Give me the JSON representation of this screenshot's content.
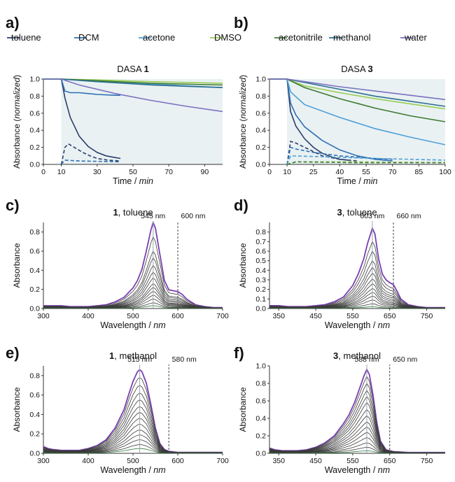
{
  "legend": {
    "items": [
      {
        "name": "toluene",
        "color": "#2c3e6b"
      },
      {
        "name": "DCM",
        "color": "#2f6fb3"
      },
      {
        "name": "acetone",
        "color": "#4f9fd6"
      },
      {
        "name": "DMSO",
        "color": "#9acd55"
      },
      {
        "name": "acetonitrile",
        "color": "#3e7a30"
      },
      {
        "name": "methanol",
        "color": "#2c6f8f"
      },
      {
        "name": "water",
        "color": "#7a72c2"
      }
    ]
  },
  "chart_data": [
    {
      "panel": "a)",
      "type": "line",
      "title_prefix": "DASA ",
      "title_bold": "1",
      "xlabel_main": "Time / ",
      "xlabel_unit": "min",
      "ylabel_main": "Absorbance (",
      "ylabel_unit": "normalized",
      "ylabel_end": ")",
      "xlim": [
        0,
        100
      ],
      "ylim": [
        0,
        1.0
      ],
      "xticks": [
        0,
        10,
        30,
        50,
        70,
        90
      ],
      "yticks": [
        0.0,
        0.2,
        0.4,
        0.6,
        0.8,
        1.0
      ],
      "shaded_from_x": 10,
      "series": [
        {
          "name": "toluene",
          "color": "#2c3e6b",
          "dashed": false,
          "x": [
            0,
            10,
            12,
            15,
            20,
            25,
            30,
            35,
            40,
            43
          ],
          "y": [
            1.0,
            1.0,
            0.78,
            0.55,
            0.33,
            0.21,
            0.14,
            0.1,
            0.08,
            0.07
          ]
        },
        {
          "name": "toluene",
          "color": "#2c3e6b",
          "dashed": true,
          "x": [
            10,
            12,
            14,
            18,
            22,
            26,
            30,
            36,
            43
          ],
          "y": [
            0.0,
            0.2,
            0.24,
            0.19,
            0.14,
            0.1,
            0.07,
            0.05,
            0.04
          ]
        },
        {
          "name": "DCM",
          "color": "#2f6fb3",
          "dashed": false,
          "x": [
            0,
            10,
            12,
            15,
            20,
            30,
            40,
            43
          ],
          "y": [
            1.0,
            1.0,
            0.86,
            0.84,
            0.84,
            0.82,
            0.81,
            0.81
          ]
        },
        {
          "name": "DCM",
          "color": "#2f6fb3",
          "dashed": true,
          "x": [
            10,
            12,
            20,
            43
          ],
          "y": [
            0.0,
            0.05,
            0.04,
            0.03
          ]
        },
        {
          "name": "acetone",
          "color": "#4f9fd6",
          "dashed": false,
          "x": [
            0,
            10,
            30,
            60,
            100
          ],
          "y": [
            1.0,
            1.0,
            0.97,
            0.94,
            0.9
          ]
        },
        {
          "name": "DMSO",
          "color": "#9acd55",
          "dashed": false,
          "x": [
            0,
            10,
            30,
            60,
            100
          ],
          "y": [
            1.0,
            1.0,
            0.99,
            0.97,
            0.95
          ]
        },
        {
          "name": "acetonitrile",
          "color": "#3e7a30",
          "dashed": false,
          "x": [
            0,
            10,
            30,
            60,
            100
          ],
          "y": [
            1.0,
            1.0,
            0.98,
            0.95,
            0.93
          ]
        },
        {
          "name": "methanol",
          "color": "#2c6f8f",
          "dashed": false,
          "x": [
            0,
            10,
            30,
            60,
            100
          ],
          "y": [
            1.0,
            1.0,
            0.97,
            0.93,
            0.9
          ]
        },
        {
          "name": "water",
          "color": "#7a72c2",
          "dashed": false,
          "x": [
            0,
            10,
            20,
            40,
            60,
            80,
            100
          ],
          "y": [
            1.0,
            1.0,
            0.93,
            0.83,
            0.75,
            0.68,
            0.62
          ]
        }
      ]
    },
    {
      "panel": "b)",
      "type": "line",
      "title_prefix": "DASA ",
      "title_bold": "3",
      "xlabel_main": "Time / ",
      "xlabel_unit": "min",
      "ylabel_main": "Absorbance (",
      "ylabel_unit": "normalized",
      "ylabel_end": ")",
      "xlim": [
        0,
        100
      ],
      "ylim": [
        0,
        1.0
      ],
      "xticks": [
        0,
        10,
        25,
        40,
        55,
        70,
        85,
        100
      ],
      "yticks": [
        0.0,
        0.2,
        0.4,
        0.6,
        0.8,
        1.0
      ],
      "shaded_from_x": 10,
      "series": [
        {
          "name": "toluene",
          "color": "#2c3e6b",
          "dashed": false,
          "x": [
            0,
            10,
            12,
            15,
            20,
            25,
            30,
            35,
            40,
            45
          ],
          "y": [
            1.0,
            1.0,
            0.62,
            0.45,
            0.3,
            0.2,
            0.13,
            0.09,
            0.06,
            0.05
          ]
        },
        {
          "name": "toluene",
          "color": "#2c3e6b",
          "dashed": true,
          "x": [
            10,
            12,
            15,
            20,
            25,
            30,
            40,
            50
          ],
          "y": [
            0.0,
            0.27,
            0.25,
            0.2,
            0.15,
            0.1,
            0.06,
            0.04
          ]
        },
        {
          "name": "DCM",
          "color": "#2f6fb3",
          "dashed": false,
          "x": [
            0,
            10,
            12,
            15,
            20,
            30,
            40,
            50,
            60,
            70
          ],
          "y": [
            1.0,
            1.0,
            0.72,
            0.58,
            0.44,
            0.28,
            0.17,
            0.1,
            0.06,
            0.04
          ]
        },
        {
          "name": "DCM",
          "color": "#2f6fb3",
          "dashed": true,
          "x": [
            10,
            12,
            15,
            25,
            40,
            60,
            70
          ],
          "y": [
            0.0,
            0.2,
            0.18,
            0.14,
            0.1,
            0.07,
            0.06
          ]
        },
        {
          "name": "acetone",
          "color": "#4f9fd6",
          "dashed": false,
          "x": [
            0,
            10,
            12,
            20,
            40,
            60,
            80,
            100
          ],
          "y": [
            1.0,
            1.0,
            0.85,
            0.7,
            0.55,
            0.42,
            0.32,
            0.23
          ]
        },
        {
          "name": "acetone",
          "color": "#4f9fd6",
          "dashed": true,
          "x": [
            10,
            12,
            30,
            60,
            100
          ],
          "y": [
            0.0,
            0.1,
            0.09,
            0.07,
            0.05
          ]
        },
        {
          "name": "DMSO",
          "color": "#9acd55",
          "dashed": false,
          "x": [
            0,
            10,
            20,
            40,
            60,
            80,
            100
          ],
          "y": [
            1.0,
            1.0,
            0.92,
            0.84,
            0.77,
            0.71,
            0.65
          ]
        },
        {
          "name": "DMSO",
          "color": "#9acd55",
          "dashed": true,
          "x": [
            10,
            15,
            50,
            100
          ],
          "y": [
            0.0,
            0.03,
            0.03,
            0.02
          ]
        },
        {
          "name": "acetonitrile",
          "color": "#3e7a30",
          "dashed": false,
          "x": [
            0,
            10,
            20,
            40,
            60,
            80,
            100
          ],
          "y": [
            1.0,
            1.0,
            0.9,
            0.77,
            0.66,
            0.57,
            0.5
          ]
        },
        {
          "name": "acetonitrile",
          "color": "#3e7a30",
          "dashed": true,
          "x": [
            10,
            15,
            50,
            100
          ],
          "y": [
            0.0,
            0.03,
            0.02,
            0.02
          ]
        },
        {
          "name": "methanol",
          "color": "#2c6f8f",
          "dashed": false,
          "x": [
            0,
            10,
            20,
            40,
            60,
            80,
            100
          ],
          "y": [
            1.0,
            1.0,
            0.96,
            0.88,
            0.8,
            0.74,
            0.68
          ]
        },
        {
          "name": "water",
          "color": "#7a72c2",
          "dashed": false,
          "x": [
            0,
            10,
            20,
            40,
            60,
            80,
            100
          ],
          "y": [
            1.0,
            1.0,
            0.97,
            0.91,
            0.86,
            0.81,
            0.76
          ]
        }
      ]
    },
    {
      "panel": "c)",
      "type": "line",
      "title_bold": "1",
      "title_rest": ", toluene",
      "xlabel_main": "Wavelength / ",
      "xlabel_unit": "nm",
      "ylabel": "Absorbance",
      "xlim": [
        300,
        700
      ],
      "ylim": [
        0,
        0.9
      ],
      "xticks": [
        300,
        400,
        500,
        600,
        700
      ],
      "yticks": [
        0.0,
        0.2,
        0.4,
        0.6,
        0.8
      ],
      "peak": {
        "x": 545,
        "label": "545 nm"
      },
      "marker": {
        "x": 600,
        "label": "600 nm"
      },
      "spectra_envelope": {
        "x": [
          300,
          320,
          340,
          360,
          380,
          400,
          420,
          440,
          460,
          480,
          500,
          510,
          520,
          530,
          540,
          545,
          550,
          560,
          570,
          580,
          590,
          600,
          610,
          620,
          640,
          660,
          680,
          700
        ],
        "peak_heights": [
          0.9,
          0.75,
          0.6,
          0.53,
          0.45,
          0.38,
          0.32,
          0.26,
          0.22,
          0.18,
          0.14,
          0.1,
          0.06,
          0.03
        ],
        "max_curve": [
          0.03,
          0.03,
          0.03,
          0.02,
          0.02,
          0.02,
          0.03,
          0.04,
          0.07,
          0.12,
          0.22,
          0.3,
          0.42,
          0.62,
          0.84,
          0.92,
          0.86,
          0.58,
          0.3,
          0.2,
          0.19,
          0.18,
          0.15,
          0.1,
          0.04,
          0.02,
          0.01,
          0.01
        ]
      },
      "boundary_color": "#7a3fb0"
    },
    {
      "panel": "d)",
      "type": "line",
      "title_bold": "3",
      "title_rest": ", toluene",
      "xlabel_main": "Wavelength / ",
      "xlabel_unit": "nm",
      "ylabel": "Absorbance",
      "xlim": [
        325,
        800
      ],
      "ylim": [
        0,
        0.9
      ],
      "xticks": [
        350,
        450,
        550,
        650,
        750
      ],
      "yticks": [
        0.0,
        0.1,
        0.2,
        0.3,
        0.4,
        0.5,
        0.6,
        0.7,
        0.8
      ],
      "peak": {
        "x": 603,
        "label": "603 nm"
      },
      "marker": {
        "x": 660,
        "label": "660 nm"
      },
      "spectra_envelope": {
        "x": [
          325,
          350,
          375,
          400,
          425,
          450,
          475,
          500,
          525,
          550,
          565,
          580,
          590,
          600,
          603,
          610,
          620,
          630,
          640,
          650,
          660,
          670,
          680,
          700,
          725,
          750,
          800
        ],
        "peak_heights": [
          0.84,
          0.7,
          0.6,
          0.5,
          0.43,
          0.37,
          0.31,
          0.26,
          0.21,
          0.17,
          0.13,
          0.09,
          0.05,
          0.02
        ],
        "max_curve": [
          0.03,
          0.03,
          0.02,
          0.02,
          0.02,
          0.03,
          0.04,
          0.07,
          0.12,
          0.24,
          0.36,
          0.52,
          0.68,
          0.8,
          0.84,
          0.78,
          0.52,
          0.36,
          0.3,
          0.27,
          0.25,
          0.18,
          0.1,
          0.04,
          0.02,
          0.01,
          0.01
        ]
      },
      "boundary_color": "#7a3fb0"
    },
    {
      "panel": "e)",
      "type": "line",
      "title_bold": "1",
      "title_rest": ", methanol",
      "xlabel_main": "Wavelength / ",
      "xlabel_unit": "nm",
      "ylabel": "Absorbance",
      "xlim": [
        300,
        700
      ],
      "ylim": [
        0,
        0.9
      ],
      "xticks": [
        300,
        400,
        500,
        600,
        700
      ],
      "yticks": [
        0.0,
        0.2,
        0.4,
        0.6,
        0.8
      ],
      "peak": {
        "x": 515,
        "label": "515 nm"
      },
      "marker": {
        "x": 580,
        "label": "580 nm"
      },
      "spectra_envelope": {
        "x": [
          300,
          310,
          320,
          340,
          360,
          380,
          400,
          420,
          440,
          460,
          480,
          490,
          500,
          510,
          515,
          520,
          530,
          540,
          550,
          560,
          570,
          580,
          600,
          650,
          700
        ],
        "peak_heights": [
          0.86,
          0.78,
          0.7,
          0.62,
          0.55,
          0.48,
          0.42,
          0.36,
          0.3,
          0.24,
          0.19,
          0.14,
          0.09,
          0.05
        ],
        "max_curve": [
          0.07,
          0.05,
          0.04,
          0.03,
          0.03,
          0.03,
          0.05,
          0.08,
          0.14,
          0.26,
          0.45,
          0.6,
          0.74,
          0.84,
          0.86,
          0.84,
          0.72,
          0.5,
          0.26,
          0.1,
          0.04,
          0.02,
          0.01,
          0.01,
          0.01
        ]
      },
      "boundary_color": "#7a3fb0"
    },
    {
      "panel": "f)",
      "type": "line",
      "title_bold": "3",
      "title_rest": ", methanol",
      "xlabel_main": "Wavelength / ",
      "xlabel_unit": "nm",
      "ylabel": "Absorbance",
      "xlim": [
        325,
        800
      ],
      "ylim": [
        0,
        1.0
      ],
      "xticks": [
        350,
        450,
        550,
        650,
        750
      ],
      "yticks": [
        0.0,
        0.2,
        0.4,
        0.6,
        0.8,
        1.0
      ],
      "peak": {
        "x": 588,
        "label": "588 nm"
      },
      "marker": {
        "x": 650,
        "label": "650 nm"
      },
      "spectra_envelope": {
        "x": [
          325,
          340,
          360,
          380,
          400,
          425,
          450,
          475,
          500,
          525,
          540,
          555,
          570,
          580,
          588,
          595,
          605,
          615,
          625,
          640,
          660,
          700,
          750,
          800
        ],
        "peak_heights": [
          0.96,
          0.88,
          0.8,
          0.72,
          0.65,
          0.58,
          0.5,
          0.43,
          0.36,
          0.3,
          0.24,
          0.18,
          0.12,
          0.07,
          0.03
        ],
        "max_curve": [
          0.06,
          0.04,
          0.03,
          0.03,
          0.03,
          0.04,
          0.07,
          0.12,
          0.2,
          0.34,
          0.44,
          0.58,
          0.76,
          0.88,
          0.96,
          0.9,
          0.66,
          0.36,
          0.14,
          0.04,
          0.02,
          0.01,
          0.01,
          0.01
        ]
      },
      "boundary_color": "#7a3fb0"
    }
  ]
}
